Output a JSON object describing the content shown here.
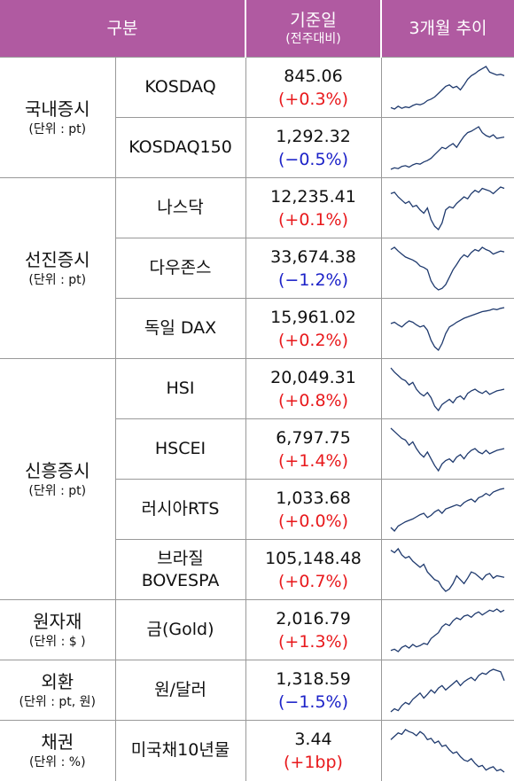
{
  "header": {
    "category": "구분",
    "base_date": "기준일",
    "base_sub": "(전주대비)",
    "trend": "3개월 추이"
  },
  "colors": {
    "header_bg": "#b05aa1",
    "up": "#e8191c",
    "down": "#1c22c8",
    "spark": "#1f3a6e"
  },
  "groups": [
    {
      "name": "국내증시",
      "unit": "(단위 : pt)",
      "items": [
        {
          "name_lines": [
            "KOSDAQ"
          ],
          "value": "845.06",
          "change": "(+0.3%)",
          "direction": "up",
          "trend": [
            30,
            28,
            32,
            29,
            31,
            30,
            33,
            35,
            34,
            36,
            40,
            42,
            45,
            50,
            55,
            60,
            62,
            58,
            60,
            55,
            62,
            70,
            75,
            78,
            82,
            85,
            88,
            80,
            78,
            76,
            77,
            75
          ]
        },
        {
          "name_lines": [
            "KOSDAQ150"
          ],
          "value": "1,292.32",
          "change": "(−0.5%)",
          "direction": "down",
          "trend": [
            20,
            22,
            21,
            24,
            25,
            23,
            26,
            28,
            27,
            30,
            32,
            35,
            40,
            45,
            50,
            48,
            52,
            55,
            50,
            58,
            65,
            70,
            72,
            75,
            78,
            70,
            66,
            64,
            67,
            62,
            63,
            64
          ]
        }
      ]
    },
    {
      "name": "선진증시",
      "unit": "(단위 : pt)",
      "items": [
        {
          "name_lines": [
            "나스닥"
          ],
          "value": "12,235.41",
          "change": "(+0.1%)",
          "direction": "up",
          "trend": [
            80,
            82,
            75,
            70,
            65,
            68,
            60,
            62,
            55,
            50,
            58,
            40,
            30,
            25,
            35,
            55,
            60,
            58,
            65,
            70,
            75,
            72,
            80,
            85,
            82,
            88,
            86,
            84,
            80,
            85,
            90,
            88
          ]
        },
        {
          "name_lines": [
            "다우존스"
          ],
          "value": "33,674.38",
          "change": "(−1.2%)",
          "direction": "down",
          "trend": [
            82,
            85,
            80,
            76,
            72,
            70,
            68,
            65,
            60,
            58,
            55,
            40,
            32,
            28,
            30,
            35,
            45,
            55,
            62,
            70,
            75,
            72,
            78,
            82,
            80,
            85,
            82,
            80,
            76,
            78,
            80,
            79
          ]
        },
        {
          "name_lines": [
            "독일 DAX"
          ],
          "value": "15,961.02",
          "change": "(+0.2%)",
          "direction": "up",
          "trend": [
            60,
            62,
            58,
            55,
            60,
            64,
            62,
            58,
            55,
            57,
            50,
            35,
            25,
            20,
            30,
            45,
            55,
            58,
            62,
            65,
            68,
            70,
            72,
            74,
            76,
            78,
            79,
            80,
            82,
            81,
            83,
            84
          ]
        }
      ]
    },
    {
      "name": "신흥증시",
      "unit": "(단위 : pt)",
      "items": [
        {
          "name_lines": [
            "HSI"
          ],
          "value": "20,049.31",
          "change": "(+0.8%)",
          "direction": "up",
          "trend": [
            85,
            80,
            76,
            72,
            70,
            65,
            68,
            60,
            55,
            52,
            56,
            50,
            40,
            35,
            42,
            45,
            48,
            44,
            50,
            52,
            48,
            55,
            58,
            60,
            57,
            55,
            58,
            54,
            56,
            58,
            59,
            60
          ]
        },
        {
          "name_lines": [
            "HSCEI"
          ],
          "value": "6,797.75",
          "change": "(+1.4%)",
          "direction": "up",
          "trend": [
            86,
            82,
            78,
            74,
            72,
            66,
            70,
            62,
            56,
            52,
            58,
            50,
            42,
            36,
            44,
            48,
            50,
            46,
            52,
            55,
            50,
            56,
            60,
            62,
            58,
            56,
            60,
            56,
            58,
            60,
            61,
            62
          ]
        },
        {
          "name_lines": [
            "러시아RTS"
          ],
          "value": "1,033.68",
          "change": "(+0.0%)",
          "direction": "up",
          "trend": [
            30,
            25,
            32,
            35,
            38,
            40,
            42,
            45,
            48,
            50,
            44,
            47,
            52,
            55,
            50,
            56,
            58,
            60,
            62,
            60,
            65,
            68,
            70,
            66,
            72,
            74,
            78,
            75,
            80,
            82,
            84,
            85
          ]
        },
        {
          "name_lines": [
            "브라질",
            "BOVESPA"
          ],
          "value": "105,148.48",
          "change": "(+0.7%)",
          "direction": "up",
          "trend": [
            88,
            85,
            90,
            82,
            78,
            80,
            74,
            70,
            66,
            70,
            60,
            55,
            50,
            48,
            40,
            35,
            38,
            45,
            55,
            50,
            45,
            52,
            60,
            58,
            54,
            50,
            56,
            58,
            52,
            55,
            54,
            53
          ]
        }
      ]
    },
    {
      "name": "원자재",
      "unit": "(단위 : $ )",
      "items": [
        {
          "name_lines": [
            "금(Gold)"
          ],
          "value": "2,016.79",
          "change": "(+1.3%)",
          "direction": "up",
          "trend": [
            20,
            22,
            18,
            25,
            28,
            24,
            30,
            26,
            28,
            32,
            30,
            40,
            45,
            50,
            60,
            65,
            62,
            70,
            75,
            72,
            78,
            80,
            76,
            82,
            85,
            80,
            84,
            88,
            86,
            90,
            85,
            88
          ]
        }
      ]
    },
    {
      "name": "외환",
      "unit": "(단위 : pt, 원)",
      "items": [
        {
          "name_lines": [
            "원/달러"
          ],
          "value": "1,318.59",
          "change": "(−1.5%)",
          "direction": "down",
          "trend": [
            20,
            25,
            22,
            30,
            35,
            32,
            40,
            45,
            50,
            42,
            48,
            55,
            50,
            58,
            62,
            55,
            60,
            65,
            70,
            62,
            68,
            72,
            75,
            70,
            78,
            82,
            80,
            85,
            88,
            86,
            84,
            70
          ]
        }
      ]
    },
    {
      "name": "채권",
      "unit": "(단위 : %)",
      "items": [
        {
          "name_lines": [
            "미국채10년물"
          ],
          "value": "3.44",
          "change": "(+1bp)",
          "direction": "up",
          "trend": [
            70,
            75,
            80,
            78,
            85,
            82,
            80,
            76,
            82,
            78,
            70,
            72,
            65,
            68,
            60,
            62,
            55,
            50,
            52,
            45,
            40,
            38,
            42,
            35,
            30,
            32,
            25,
            28,
            30,
            24,
            26,
            22
          ]
        }
      ]
    }
  ]
}
